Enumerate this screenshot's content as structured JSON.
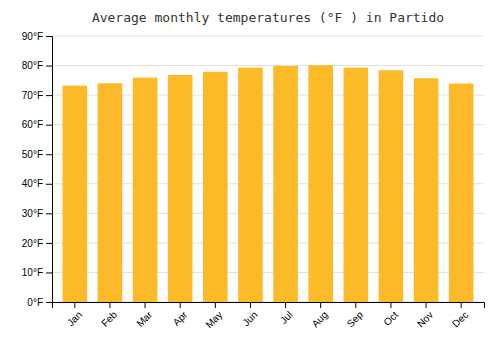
{
  "chart_data": {
    "type": "bar",
    "title": "Average monthly temperatures (°F ) in Partido",
    "categories": [
      "Jan",
      "Feb",
      "Mar",
      "Apr",
      "May",
      "Jun",
      "Jul",
      "Aug",
      "Sep",
      "Oct",
      "Nov",
      "Dec"
    ],
    "values": [
      73.2,
      74.0,
      75.9,
      76.8,
      77.9,
      79.3,
      79.9,
      80.1,
      79.3,
      78.4,
      75.7,
      73.9
    ],
    "color": "#fcba29",
    "ylim": [
      0,
      90
    ],
    "yticks": [
      {
        "value": 0,
        "label": "0°F"
      },
      {
        "value": 10,
        "label": "10°F"
      },
      {
        "value": 20,
        "label": "20°F"
      },
      {
        "value": 30,
        "label": "30°F"
      },
      {
        "value": 40,
        "label": "40°F"
      },
      {
        "value": 50,
        "label": "50°F"
      },
      {
        "value": 60,
        "label": "60°F"
      },
      {
        "value": 70,
        "label": "70°F"
      },
      {
        "value": 80,
        "label": "80°F"
      },
      {
        "value": 90,
        "label": "90°F"
      }
    ],
    "grid": true
  }
}
